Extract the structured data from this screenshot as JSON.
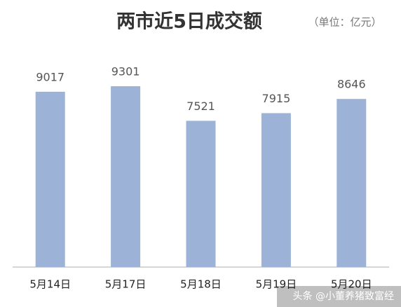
{
  "chart_data": {
    "type": "bar",
    "title": "两市近5日成交额",
    "subtitle": "（单位：亿元）",
    "categories": [
      "5月14日",
      "5月17日",
      "5月18日",
      "5月19日",
      "5月20日"
    ],
    "values": [
      9017,
      9301,
      7521,
      7915,
      8646
    ],
    "color": "#9cb2d6",
    "watermark": "头条 @小董养猪致富经"
  }
}
